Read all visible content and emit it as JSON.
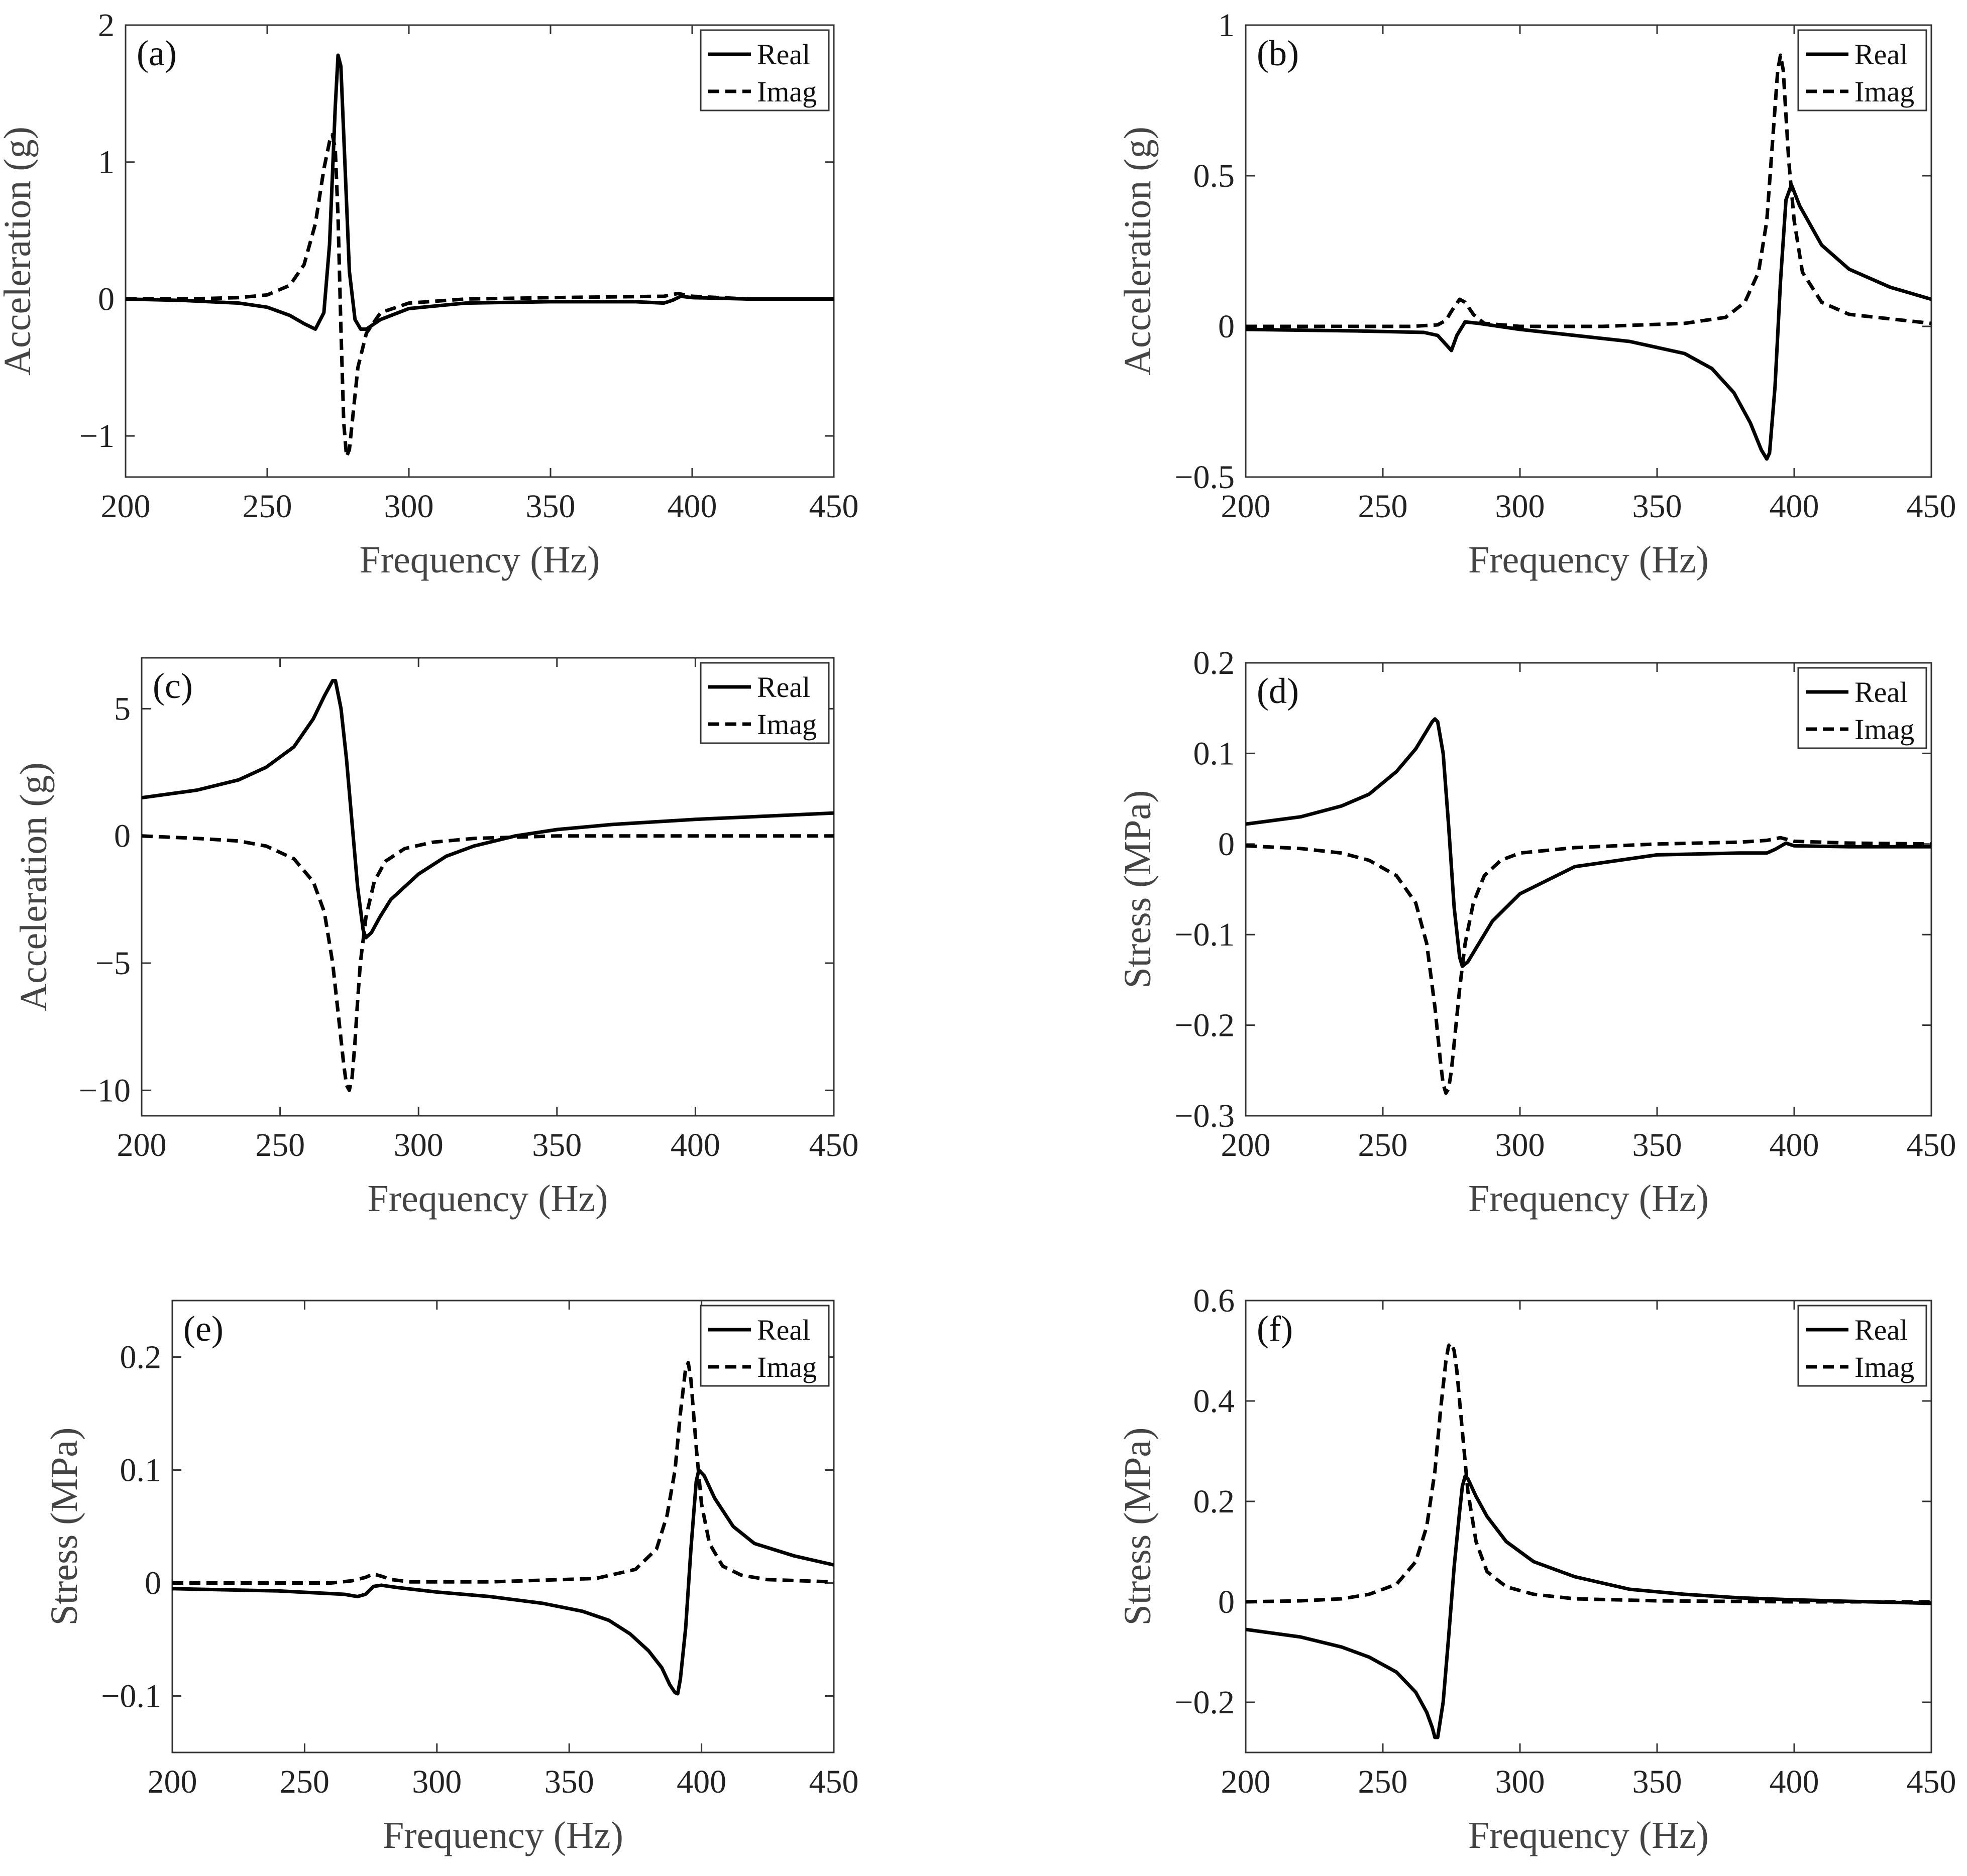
{
  "chart_data": [
    {
      "type": "line",
      "panel_label": "(a)",
      "xlabel": "Frequency (Hz)",
      "ylabel": "Acceleration (g)",
      "xlim": [
        200,
        450
      ],
      "ylim": [
        -1.3,
        2
      ],
      "xticks": [
        200,
        250,
        300,
        350,
        400,
        450
      ],
      "xtick_labels": [
        "200",
        "250",
        "300",
        "350",
        "400",
        "450"
      ],
      "yticks": [
        -1,
        0,
        1,
        2
      ],
      "ytick_labels": [
        "−1",
        "0",
        "1",
        "2"
      ],
      "legend": {
        "position": "top-right",
        "entries": [
          "Real",
          "Imag"
        ]
      },
      "series": [
        {
          "name": "Real",
          "style": "solid",
          "x": [
            200,
            220,
            240,
            250,
            258,
            263,
            267,
            270,
            272,
            274,
            275,
            276,
            277,
            279,
            281,
            283,
            285,
            290,
            300,
            320,
            350,
            380,
            390,
            393,
            396,
            400,
            420,
            450
          ],
          "y": [
            0,
            -0.01,
            -0.03,
            -0.06,
            -0.12,
            -0.18,
            -0.22,
            -0.1,
            0.4,
            1.4,
            1.78,
            1.7,
            1.2,
            0.2,
            -0.15,
            -0.22,
            -0.22,
            -0.15,
            -0.07,
            -0.03,
            -0.02,
            -0.02,
            -0.03,
            -0.01,
            0.02,
            0.01,
            0,
            0
          ]
        },
        {
          "name": "Imag",
          "style": "dashed",
          "x": [
            200,
            220,
            240,
            250,
            258,
            263,
            267,
            270,
            272,
            273,
            274,
            275,
            276,
            277,
            278,
            279,
            280,
            282,
            285,
            290,
            300,
            320,
            350,
            390,
            395,
            400,
            420,
            450
          ],
          "y": [
            0,
            0,
            0.01,
            0.03,
            0.1,
            0.25,
            0.55,
            0.95,
            1.15,
            1.2,
            1.1,
            0.6,
            -0.2,
            -0.9,
            -1.15,
            -1.1,
            -0.9,
            -0.5,
            -0.25,
            -0.1,
            -0.03,
            0,
            0.01,
            0.02,
            0.04,
            0.02,
            0,
            0
          ]
        }
      ]
    },
    {
      "type": "line",
      "panel_label": "(b)",
      "xlabel": "Frequency (Hz)",
      "ylabel": "Acceleration (g)",
      "xlim": [
        200,
        450
      ],
      "ylim": [
        -0.5,
        1
      ],
      "xticks": [
        200,
        250,
        300,
        350,
        400,
        450
      ],
      "xtick_labels": [
        "200",
        "250",
        "300",
        "350",
        "400",
        "450"
      ],
      "yticks": [
        -0.5,
        0,
        0.5,
        1
      ],
      "ytick_labels": [
        "−0.5",
        "0",
        "0.5",
        "1"
      ],
      "legend": {
        "position": "top-right",
        "entries": [
          "Real",
          "Imag"
        ]
      },
      "series": [
        {
          "name": "Real",
          "style": "solid",
          "x": [
            200,
            240,
            265,
            270,
            273,
            275,
            277,
            280,
            285,
            300,
            320,
            340,
            360,
            370,
            378,
            384,
            388,
            390,
            391,
            393,
            395,
            397,
            399,
            402,
            410,
            420,
            435,
            450
          ],
          "y": [
            -0.01,
            -0.015,
            -0.02,
            -0.03,
            -0.06,
            -0.08,
            -0.03,
            0.015,
            0.01,
            -0.01,
            -0.03,
            -0.05,
            -0.09,
            -0.14,
            -0.22,
            -0.32,
            -0.41,
            -0.44,
            -0.42,
            -0.2,
            0.15,
            0.42,
            0.47,
            0.4,
            0.27,
            0.19,
            0.13,
            0.09
          ]
        },
        {
          "name": "Imag",
          "style": "dashed",
          "x": [
            200,
            260,
            270,
            273,
            275,
            278,
            280,
            283,
            287,
            300,
            330,
            360,
            375,
            382,
            387,
            390,
            392,
            394,
            395,
            396,
            397,
            398,
            400,
            403,
            410,
            420,
            450
          ],
          "y": [
            0,
            0,
            0.005,
            0.02,
            0.05,
            0.09,
            0.08,
            0.04,
            0.01,
            0,
            0,
            0.01,
            0.03,
            0.08,
            0.18,
            0.35,
            0.6,
            0.85,
            0.9,
            0.85,
            0.7,
            0.55,
            0.35,
            0.18,
            0.08,
            0.04,
            0.01
          ]
        }
      ]
    },
    {
      "type": "line",
      "panel_label": "(c)",
      "xlabel": "Frequency (Hz)",
      "ylabel": "Acceleration (g)",
      "xlim": [
        200,
        450
      ],
      "ylim": [
        -11,
        7
      ],
      "xticks": [
        200,
        250,
        300,
        350,
        400,
        450
      ],
      "xtick_labels": [
        "200",
        "250",
        "300",
        "350",
        "400",
        "450"
      ],
      "yticks": [
        -10,
        -5,
        0,
        5
      ],
      "ytick_labels": [
        "−10",
        "−5",
        "0",
        "5"
      ],
      "legend": {
        "position": "top-right",
        "entries": [
          "Real",
          "Imag"
        ]
      },
      "series": [
        {
          "name": "Real",
          "style": "solid",
          "x": [
            200,
            220,
            235,
            245,
            255,
            262,
            266,
            269,
            270,
            272,
            274,
            276,
            278,
            280,
            281,
            283,
            286,
            290,
            300,
            310,
            320,
            335,
            350,
            370,
            400,
            420,
            450
          ],
          "y": [
            1.5,
            1.8,
            2.2,
            2.7,
            3.5,
            4.6,
            5.5,
            6.1,
            6.1,
            5.0,
            3.0,
            0.5,
            -2.0,
            -3.7,
            -4.0,
            -3.8,
            -3.2,
            -2.5,
            -1.5,
            -0.8,
            -0.4,
            0,
            0.25,
            0.45,
            0.65,
            0.75,
            0.9
          ]
        },
        {
          "name": "Imag",
          "style": "dashed",
          "x": [
            200,
            220,
            235,
            245,
            255,
            262,
            266,
            269,
            271,
            273,
            274,
            275,
            276,
            277,
            278,
            279,
            281,
            284,
            288,
            295,
            305,
            320,
            350,
            400,
            450
          ],
          "y": [
            0,
            -0.1,
            -0.2,
            -0.4,
            -0.9,
            -1.8,
            -3.0,
            -5.0,
            -7.0,
            -9.0,
            -9.8,
            -10.0,
            -9.5,
            -8.2,
            -6.5,
            -5.0,
            -3.2,
            -1.8,
            -1.0,
            -0.5,
            -0.25,
            -0.1,
            0,
            0,
            0
          ]
        }
      ]
    },
    {
      "type": "line",
      "panel_label": "(d)",
      "xlabel": "Frequency (Hz)",
      "ylabel": "Stress (MPa)",
      "xlim": [
        200,
        450
      ],
      "ylim": [
        -0.3,
        0.2
      ],
      "xticks": [
        200,
        250,
        300,
        350,
        400,
        450
      ],
      "xtick_labels": [
        "200",
        "250",
        "300",
        "350",
        "400",
        "450"
      ],
      "yticks": [
        -0.3,
        -0.2,
        -0.1,
        0,
        0.1,
        0.2
      ],
      "ytick_labels": [
        "−0.3",
        "−0.2",
        "−0.1",
        "0",
        "0.1",
        "0.2"
      ],
      "legend": {
        "position": "top-right",
        "entries": [
          "Real",
          "Imag"
        ]
      },
      "series": [
        {
          "name": "Real",
          "style": "solid",
          "x": [
            200,
            220,
            235,
            245,
            255,
            262,
            266,
            268,
            269,
            270,
            272,
            274,
            276,
            278,
            279,
            281,
            285,
            290,
            300,
            320,
            350,
            380,
            390,
            393,
            397,
            400,
            420,
            450
          ],
          "y": [
            0.022,
            0.03,
            0.042,
            0.055,
            0.08,
            0.105,
            0.125,
            0.135,
            0.138,
            0.135,
            0.1,
            0.02,
            -0.07,
            -0.125,
            -0.135,
            -0.13,
            -0.11,
            -0.085,
            -0.055,
            -0.025,
            -0.012,
            -0.01,
            -0.01,
            -0.006,
            0.001,
            -0.002,
            -0.003,
            -0.003
          ]
        },
        {
          "name": "Imag",
          "style": "dashed",
          "x": [
            200,
            220,
            235,
            245,
            255,
            262,
            266,
            269,
            271,
            272,
            273,
            274,
            275,
            276,
            278,
            280,
            283,
            287,
            293,
            300,
            320,
            350,
            380,
            390,
            395,
            400,
            420,
            450
          ],
          "y": [
            -0.002,
            -0.005,
            -0.01,
            -0.018,
            -0.035,
            -0.065,
            -0.11,
            -0.18,
            -0.24,
            -0.265,
            -0.275,
            -0.27,
            -0.25,
            -0.22,
            -0.16,
            -0.11,
            -0.065,
            -0.035,
            -0.018,
            -0.01,
            -0.004,
            0,
            0.002,
            0.004,
            0.007,
            0.003,
            0.001,
            0
          ]
        }
      ]
    },
    {
      "type": "line",
      "panel_label": "(e)",
      "xlabel": "Frequency (Hz)",
      "ylabel": "Stress (MPa)",
      "xlim": [
        200,
        450
      ],
      "ylim": [
        -0.15,
        0.25
      ],
      "xticks": [
        200,
        250,
        300,
        350,
        400,
        450
      ],
      "xtick_labels": [
        "200",
        "250",
        "300",
        "350",
        "400",
        "450"
      ],
      "yticks": [
        -0.1,
        0,
        0.1,
        0.2
      ],
      "ytick_labels": [
        "−0.1",
        "0",
        "0.1",
        "0.2"
      ],
      "legend": {
        "position": "top-right",
        "entries": [
          "Real",
          "Imag"
        ]
      },
      "series": [
        {
          "name": "Real",
          "style": "solid",
          "x": [
            200,
            240,
            265,
            270,
            273,
            276,
            279,
            285,
            300,
            320,
            340,
            355,
            365,
            373,
            380,
            385,
            388,
            390,
            391,
            392,
            394,
            396,
            398,
            399,
            401,
            405,
            412,
            420,
            435,
            450
          ],
          "y": [
            -0.005,
            -0.007,
            -0.01,
            -0.012,
            -0.01,
            -0.003,
            -0.002,
            -0.004,
            -0.008,
            -0.012,
            -0.018,
            -0.025,
            -0.033,
            -0.045,
            -0.06,
            -0.075,
            -0.09,
            -0.097,
            -0.098,
            -0.085,
            -0.04,
            0.03,
            0.09,
            0.1,
            0.095,
            0.075,
            0.05,
            0.035,
            0.024,
            0.016
          ]
        },
        {
          "name": "Imag",
          "style": "dashed",
          "x": [
            200,
            260,
            268,
            273,
            276,
            279,
            283,
            290,
            320,
            360,
            375,
            383,
            387,
            390,
            392,
            394,
            395,
            396,
            397,
            398,
            400,
            403,
            408,
            415,
            425,
            450
          ],
          "y": [
            0,
            0,
            0.002,
            0.005,
            0.008,
            0.006,
            0.003,
            0.001,
            0.001,
            0.004,
            0.012,
            0.03,
            0.06,
            0.1,
            0.15,
            0.19,
            0.195,
            0.18,
            0.15,
            0.12,
            0.07,
            0.035,
            0.015,
            0.007,
            0.003,
            0.001
          ]
        }
      ]
    },
    {
      "type": "line",
      "panel_label": "(f)",
      "xlabel": "Frequency (Hz)",
      "ylabel": "Stress (MPa)",
      "xlim": [
        200,
        450
      ],
      "ylim": [
        -0.3,
        0.6
      ],
      "xticks": [
        200,
        250,
        300,
        350,
        400,
        450
      ],
      "xtick_labels": [
        "200",
        "250",
        "300",
        "350",
        "400",
        "450"
      ],
      "yticks": [
        -0.2,
        0,
        0.2,
        0.4,
        0.6
      ],
      "ytick_labels": [
        "−0.2",
        "0",
        "0.2",
        "0.4",
        "0.6"
      ],
      "legend": {
        "position": "top-right",
        "entries": [
          "Real",
          "Imag"
        ]
      },
      "series": [
        {
          "name": "Real",
          "style": "solid",
          "x": [
            200,
            220,
            235,
            245,
            255,
            262,
            266,
            268,
            269,
            270,
            272,
            274,
            276,
            278,
            279,
            280,
            281,
            284,
            288,
            295,
            305,
            320,
            340,
            360,
            380,
            400,
            420,
            450
          ],
          "y": [
            -0.055,
            -0.07,
            -0.09,
            -0.11,
            -0.14,
            -0.18,
            -0.22,
            -0.25,
            -0.27,
            -0.27,
            -0.2,
            -0.07,
            0.07,
            0.18,
            0.23,
            0.25,
            0.245,
            0.21,
            0.17,
            0.12,
            0.08,
            0.05,
            0.025,
            0.015,
            0.008,
            0.004,
            0.001,
            -0.003
          ]
        },
        {
          "name": "Imag",
          "style": "dashed",
          "x": [
            200,
            220,
            235,
            245,
            255,
            262,
            266,
            269,
            271,
            273,
            274,
            275,
            276,
            277,
            279,
            281,
            284,
            288,
            295,
            305,
            320,
            350,
            400,
            450
          ],
          "y": [
            0,
            0.002,
            0.006,
            0.015,
            0.035,
            0.08,
            0.15,
            0.26,
            0.38,
            0.48,
            0.51,
            0.515,
            0.5,
            0.46,
            0.34,
            0.22,
            0.12,
            0.06,
            0.03,
            0.015,
            0.006,
            0.002,
            0,
            0
          ]
        }
      ]
    }
  ]
}
